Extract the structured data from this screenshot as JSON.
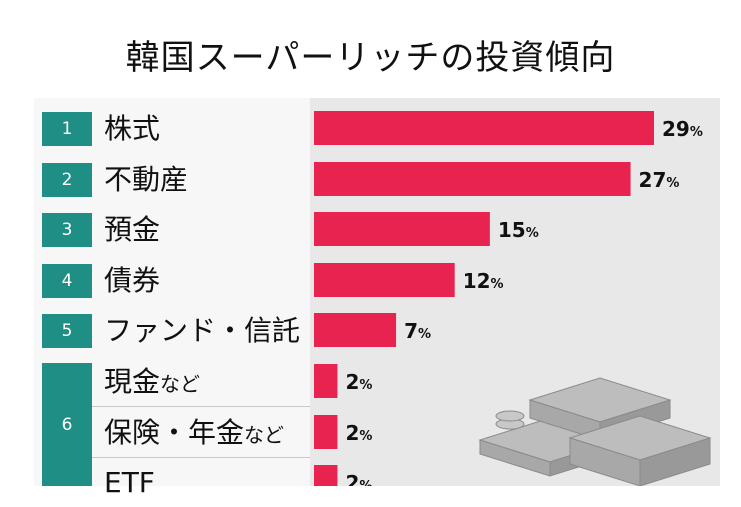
{
  "title": "韓国スーパーリッチの投資傾向",
  "colors": {
    "bar": "#e8234f",
    "rank_box": "#1f8f85"
  },
  "chart_data": {
    "type": "bar",
    "orientation": "horizontal",
    "title": "韓国スーパーリッチの投資傾向",
    "value_suffix": "%",
    "categories": [
      "株式",
      "不動産",
      "預金",
      "債券",
      "ファンド・信託",
      "現金など",
      "保険・年金など",
      "ETF"
    ],
    "ranks": [
      "1",
      "2",
      "3",
      "4",
      "5",
      "6",
      "6",
      "6"
    ],
    "values": [
      29,
      27,
      15,
      12,
      7,
      2,
      2,
      2
    ],
    "value_labels": [
      "29%",
      "27%",
      "15%",
      "12%",
      "7%",
      "2%",
      "2%",
      "2%"
    ]
  },
  "rows": [
    {
      "rank": "1",
      "label": "株式",
      "suffix": ""
    },
    {
      "rank": "2",
      "label": "不動産",
      "suffix": ""
    },
    {
      "rank": "3",
      "label": "預金",
      "suffix": ""
    },
    {
      "rank": "4",
      "label": "債券",
      "suffix": ""
    },
    {
      "rank": "5",
      "label": "ファンド・信託",
      "suffix": ""
    },
    {
      "rank": "6",
      "label": "現金",
      "suffix": "など"
    },
    {
      "rank": "6",
      "label": "保険・年金",
      "suffix": "など"
    },
    {
      "rank": "6",
      "label": "ETF",
      "suffix": ""
    }
  ]
}
